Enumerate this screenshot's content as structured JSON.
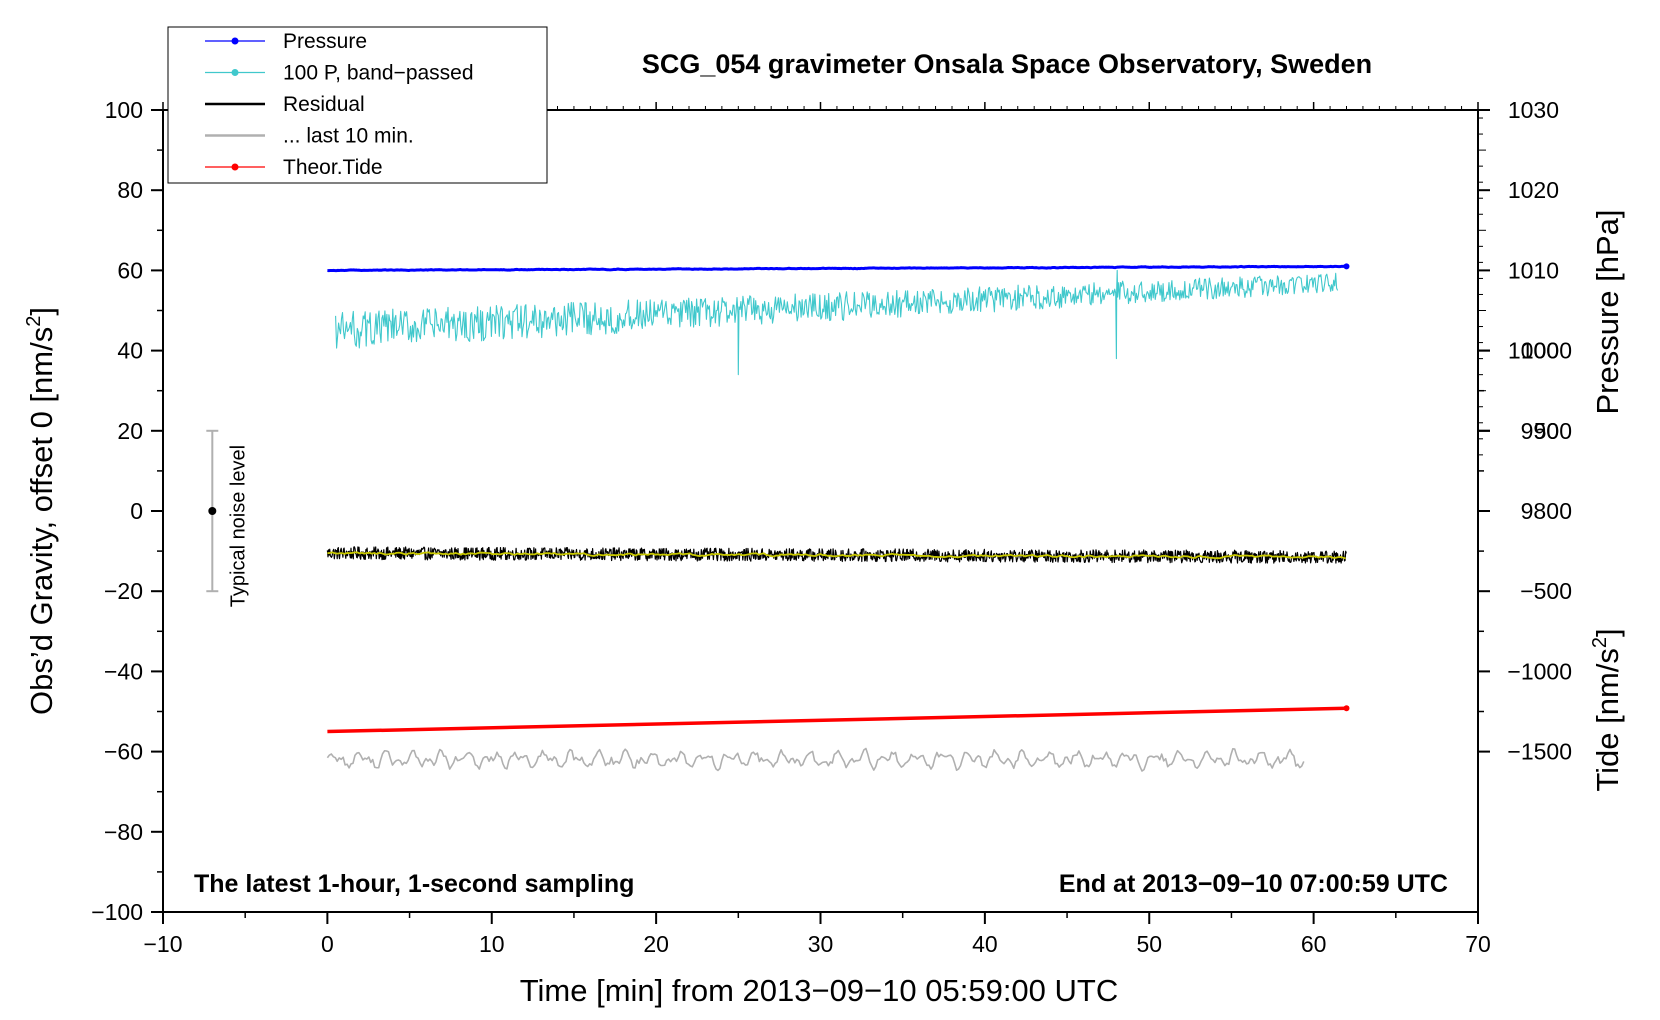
{
  "chart_data": {
    "type": "line",
    "title": "SCG_054 gravimeter Onsala Space Observatory, Sweden",
    "xlabel": "Time [min] from 2013−09−10 05:59:00 UTC",
    "ylabel_left": "Obs’d Gravity, offset 0 [nm/s",
    "ylabel_left_sup": "2",
    "ylabel_left_close": "]",
    "ylabel_right_pressure": "Pressure [hPa]",
    "ylabel_right_tide": "Tide [nm/s",
    "ylabel_right_tide_sup": "2",
    "ylabel_right_tide_close": "]",
    "xlim": [
      -10,
      70
    ],
    "ylim_left": [
      -100,
      100
    ],
    "x_ticks": [
      {
        "v": -10,
        "label": "−10"
      },
      {
        "v": 0,
        "label": "0"
      },
      {
        "v": 10,
        "label": "10"
      },
      {
        "v": 20,
        "label": "20"
      },
      {
        "v": 30,
        "label": "30"
      },
      {
        "v": 40,
        "label": "40"
      },
      {
        "v": 50,
        "label": "50"
      },
      {
        "v": 60,
        "label": "60"
      },
      {
        "v": 70,
        "label": "70"
      }
    ],
    "y_left_ticks": [
      {
        "v": 100,
        "label": "100"
      },
      {
        "v": 80,
        "label": "80"
      },
      {
        "v": 60,
        "label": "60"
      },
      {
        "v": 40,
        "label": "40"
      },
      {
        "v": 20,
        "label": "20"
      },
      {
        "v": 0,
        "label": "0"
      },
      {
        "v": -20,
        "label": "−20"
      },
      {
        "v": -40,
        "label": "−40"
      },
      {
        "v": -60,
        "label": "−60"
      },
      {
        "v": -80,
        "label": "−80"
      },
      {
        "v": -100,
        "label": "−100"
      }
    ],
    "pressure_axis": {
      "mapping": "gravity = 60 + 2*(hPa - 1010)",
      "ticks": [
        {
          "v": 1030,
          "label": "1030"
        },
        {
          "v": 1020,
          "label": "1020"
        },
        {
          "v": 1010,
          "label": "1010"
        },
        {
          "v": 1000,
          "label": "1000"
        },
        {
          "v": 990,
          "label": "990"
        },
        {
          "v": 980,
          "label": "980"
        }
      ]
    },
    "tide_axis": {
      "mapping": "gravity = tide / 25",
      "ticks": [
        {
          "v": 1000,
          "label": "1000"
        },
        {
          "v": 500,
          "label": "500"
        },
        {
          "v": 0,
          "label": "0"
        },
        {
          "v": -500,
          "label": "−500"
        },
        {
          "v": -1000,
          "label": "−1000"
        },
        {
          "v": -1500,
          "label": "−1500"
        }
      ]
    },
    "series": [
      {
        "name": "Pressure",
        "color": "#0000ff",
        "x_range": [
          0,
          62
        ],
        "y_start": 60.0,
        "y_end": 61.0,
        "noise_amplitude": 0.2
      },
      {
        "name": "100 P, band−passed",
        "color": "#40c8cc",
        "x_range": [
          0.5,
          61.5
        ],
        "y_start": 45,
        "y_end": 57,
        "noise_amplitude": 4,
        "spikes": [
          {
            "x": 25,
            "y": 34
          },
          {
            "x": 48,
            "y": 38
          },
          {
            "x": 48.05,
            "y": 60
          }
        ]
      },
      {
        "name": "Residual",
        "color": "#000000",
        "x_range": [
          0,
          62
        ],
        "y_start": -10.5,
        "y_end": -11.5,
        "noise_amplitude": 1.6
      },
      {
        "name": "... last 10 min.",
        "color": "#b0b0b0",
        "x_range": [
          0,
          59.5
        ],
        "y_start": -62,
        "y_end": -62,
        "noise_amplitude": 2.2
      },
      {
        "name": "Theor.Tide",
        "color": "#ff0000",
        "x_range": [
          0,
          62
        ],
        "y_start": -55,
        "y_end": -49.2,
        "noise_amplitude": 0
      }
    ],
    "smoothed_residual": {
      "color": "#c8c800",
      "y_start": -10.5,
      "y_end": -11.5
    },
    "noise_bar": {
      "x": -7,
      "center": 0,
      "low": -20,
      "high": 20,
      "label": "Typical noise level"
    },
    "legend_position": "top-left",
    "note_left": "The latest 1-hour, 1-second sampling",
    "note_right": "End at 2013−09−10 07:00:59 UTC"
  }
}
